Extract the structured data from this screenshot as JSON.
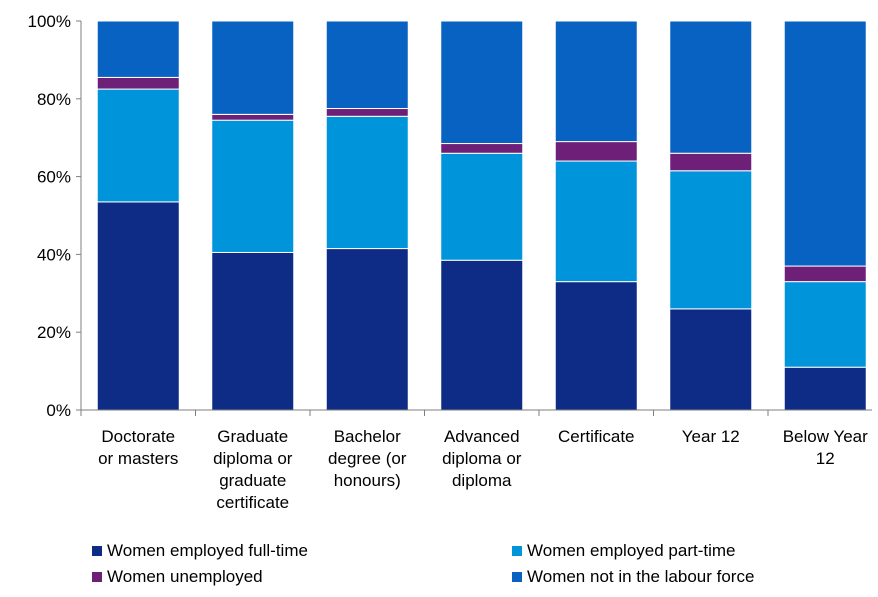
{
  "chart_data": {
    "type": "bar",
    "stacked": true,
    "percent": true,
    "categories": [
      [
        "Doctorate",
        "or masters"
      ],
      [
        "Graduate",
        "diploma or",
        "graduate",
        "certificate"
      ],
      [
        "Bachelor",
        "degree (or",
        "honours)"
      ],
      [
        "Advanced",
        "diploma or",
        "diploma"
      ],
      [
        "Certificate"
      ],
      [
        "Year 12"
      ],
      [
        "Below Year",
        "12"
      ]
    ],
    "series": [
      {
        "name": "Women employed full-time",
        "color": "#0E2C86",
        "values": [
          53.5,
          40.5,
          41.5,
          38.5,
          33.0,
          26.0,
          11.0
        ]
      },
      {
        "name": "Women employed part-time",
        "color": "#0095DA",
        "values": [
          29.0,
          34.0,
          34.0,
          27.5,
          31.0,
          35.5,
          22.0
        ]
      },
      {
        "name": "Women unemployed",
        "color": "#6E1F78",
        "values": [
          3.0,
          1.5,
          2.0,
          2.5,
          5.0,
          4.5,
          4.0
        ]
      },
      {
        "name": "Women not in the labour force",
        "color": "#0862C1",
        "values": [
          14.5,
          24.0,
          22.5,
          31.5,
          31.0,
          34.0,
          63.0
        ]
      }
    ],
    "y_ticks": [
      "0%",
      "20%",
      "40%",
      "60%",
      "80%",
      "100%"
    ],
    "ylim": [
      0,
      100
    ],
    "grid": false,
    "legend_position": "bottom"
  }
}
